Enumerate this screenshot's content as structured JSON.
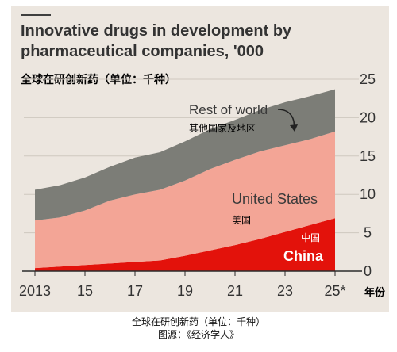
{
  "header": {
    "title": "Innovative drugs in development by pharmaceutical companies, '000",
    "subtitle_cn": "全球在研创新药（单位：千种）"
  },
  "footer": {
    "caption": "全球在研创新药（单位：千种）",
    "source": "图源：《经济学人》"
  },
  "colors": {
    "panel_bg": "#ece6df",
    "china": "#e3120b",
    "united_states": "#f3a596",
    "rest_of_world": "#7c7d77",
    "text_dark": "#333333",
    "axis": "#2b2b2b"
  },
  "chart_data": {
    "type": "area",
    "stacked": true,
    "x": [
      2013,
      2014,
      2015,
      2016,
      2017,
      2018,
      2019,
      2020,
      2021,
      2022,
      2023,
      2024,
      2025
    ],
    "x_tick_values": [
      2013,
      2015,
      2017,
      2019,
      2021,
      2023,
      2025
    ],
    "x_tick_labels": [
      "2013",
      "15",
      "17",
      "19",
      "21",
      "23",
      "25*"
    ],
    "xlabel": "年份",
    "ylim": [
      0,
      25
    ],
    "y_ticks": [
      0,
      5,
      10,
      15,
      20,
      25
    ],
    "grid": true,
    "series": [
      {
        "name": "China",
        "name_cn": "中国",
        "color": "#e3120b",
        "values": [
          0.4,
          0.6,
          0.8,
          1.0,
          1.2,
          1.4,
          2.0,
          2.7,
          3.4,
          4.2,
          5.1,
          6.0,
          6.9
        ]
      },
      {
        "name": "United States",
        "name_cn": "美国",
        "color": "#f3a596",
        "values": [
          6.2,
          6.4,
          7.1,
          8.2,
          8.8,
          9.2,
          9.8,
          10.6,
          11.1,
          11.4,
          11.3,
          11.2,
          11.3
        ]
      },
      {
        "name": "Rest of world",
        "name_cn": "其他国家及地区",
        "color": "#7c7d77",
        "values": [
          4.0,
          4.2,
          4.3,
          4.4,
          4.8,
          4.9,
          5.1,
          5.2,
          5.2,
          5.4,
          5.6,
          5.6,
          5.5
        ]
      }
    ]
  }
}
